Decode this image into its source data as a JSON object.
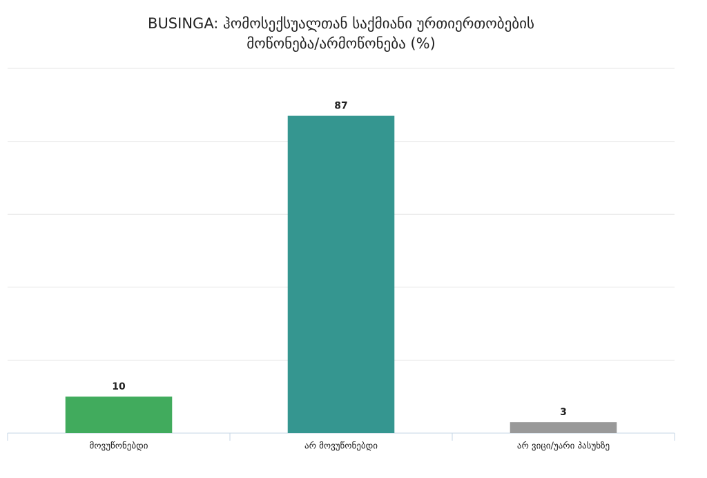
{
  "chart_data": {
    "type": "bar",
    "title": [
      "BUSINGA: ჰომოსექსუალთან საქმიანი ურთიერთობების",
      "მოწონება/არმოწონება (%)"
    ],
    "categories": [
      "მოვუწონებდი",
      "არ მოვუწონებდი",
      "არ ვიცი/უარი პასუხზე"
    ],
    "values": [
      10,
      87,
      3
    ],
    "colors": [
      "#41ab5d",
      "#359690",
      "#999999"
    ],
    "ylim": [
      0,
      100
    ],
    "yticks": [
      0,
      20,
      40,
      60,
      80,
      100
    ],
    "grid": true
  }
}
